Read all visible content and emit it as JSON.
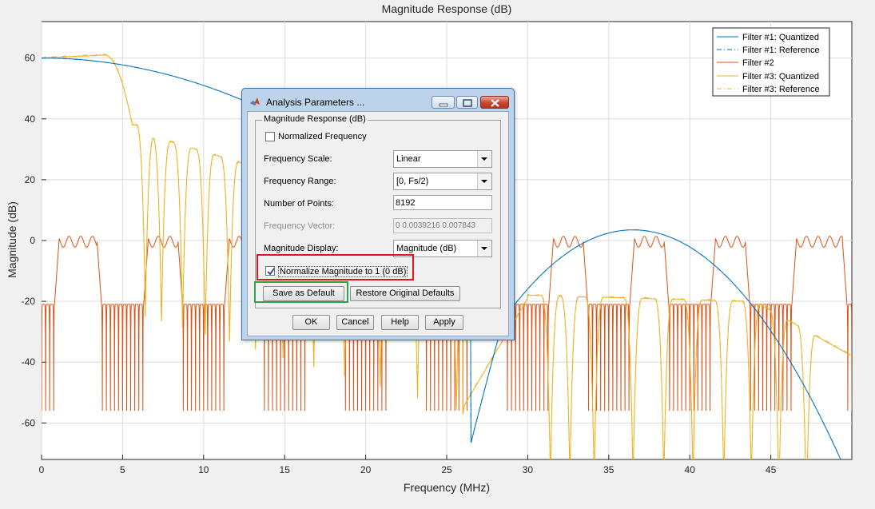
{
  "chart_data": {
    "type": "line",
    "title": "Magnitude Response (dB)",
    "xlabel": "Frequency (MHz)",
    "ylabel": "Magnitude (dB)",
    "xlim": [
      0,
      50
    ],
    "ylim": [
      -72,
      72
    ],
    "xticks": [
      0,
      5,
      10,
      15,
      20,
      25,
      30,
      35,
      40,
      45
    ],
    "yticks": [
      -60,
      -40,
      -20,
      0,
      20,
      40,
      60
    ],
    "grid": true,
    "legend": "top-right",
    "series": [
      {
        "name": "Filter #1: Quantized",
        "color": "#0072bd",
        "style": "solid"
      },
      {
        "name": "Filter #1: Reference",
        "color": "#0072bd",
        "style": "dashdot"
      },
      {
        "name": "Filter #2",
        "color": "#d95319",
        "style": "solid"
      },
      {
        "name": "Filter #3: Quantized",
        "color": "#edb120",
        "style": "solid"
      },
      {
        "name": "Filter #3: Reference",
        "color": "#edb120",
        "style": "dashdot"
      }
    ]
  },
  "dialog": {
    "title": "Analysis Parameters ...",
    "group_label": "Magnitude Response (dB)",
    "normalized_frequency": {
      "label": "Normalized Frequency",
      "checked": false
    },
    "frequency_scale": {
      "label": "Frequency Scale:",
      "value": "Linear"
    },
    "frequency_range": {
      "label": "Frequency Range:",
      "value": "[0, Fs/2)"
    },
    "number_of_points": {
      "label": "Number of Points:",
      "value": "8192"
    },
    "frequency_vector": {
      "label": "Frequency Vector:",
      "value": "0   0.0039216   0.007843"
    },
    "magnitude_display": {
      "label": "Magnitude Display:",
      "value": "Magnitude (dB)"
    },
    "normalize_magnitude": {
      "label": "Normalize Magnitude to 1 (0 dB)",
      "checked": true
    },
    "save_default_label": "Save as Default",
    "restore_defaults_label": "Restore Original Defaults",
    "ok_label": "OK",
    "cancel_label": "Cancel",
    "help_label": "Help",
    "apply_label": "Apply"
  }
}
